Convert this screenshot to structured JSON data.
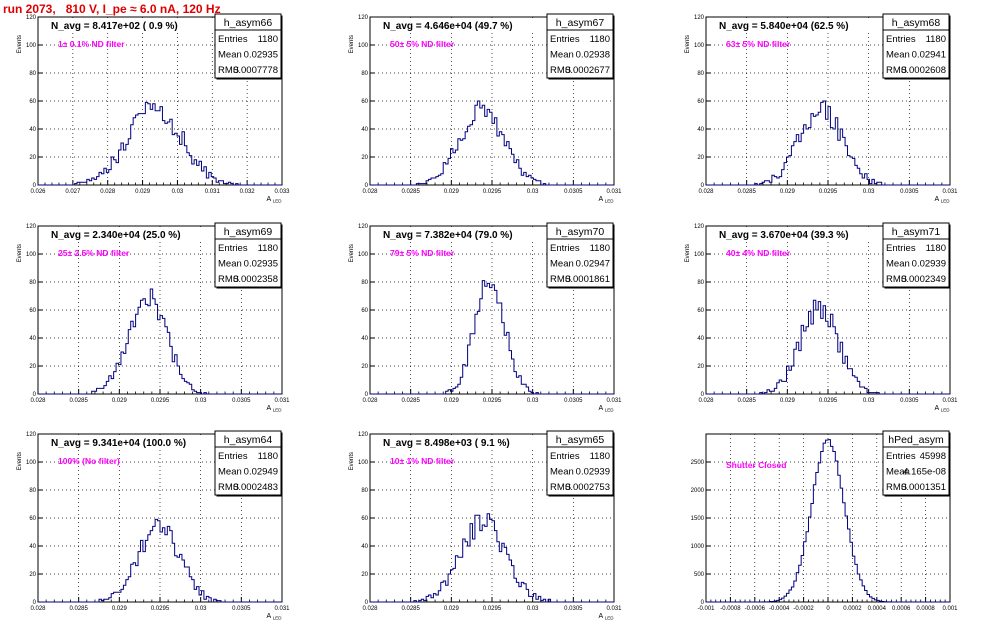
{
  "page": {
    "run_title": "run 2073,   810 V, I_pe ≈ 6.0 nA, 120 Hz",
    "colors": {
      "title": "#e00000",
      "annotation": "#ff00ff",
      "histogram_line": "#000080",
      "frame": "#000000",
      "grid": "#000000"
    }
  },
  "chart_data": [
    {
      "type": "histogram",
      "title": "h_asym66",
      "header": "N_avg = 8.417e+02 ( 0.9 %)",
      "annotation": "1± 0.1% ND filter",
      "ylabel": "Events",
      "xlabel": "A_LED",
      "stats": {
        "Entries": "1180",
        "Mean": "0.02935",
        "RMS": "0.0007778"
      },
      "xlim": [
        0.026,
        0.033
      ],
      "ylim": [
        0,
        120
      ],
      "x_ticks": [
        "0.026",
        "0.027",
        "0.028",
        "0.029",
        "0.03",
        "0.031",
        "0.032",
        "0.033"
      ],
      "y_ticks": [
        "0",
        "20",
        "40",
        "60",
        "80",
        "100",
        "120"
      ],
      "grid": true,
      "bin_count": 100,
      "mean": 0.02935,
      "rms": 0.0007778,
      "peak": 55
    },
    {
      "type": "histogram",
      "title": "h_asym67",
      "header": "N_avg = 4.646e+04 (49.7 %)",
      "annotation": "50± 5% ND filter",
      "ylabel": "Events",
      "xlabel": "A_LED",
      "stats": {
        "Entries": "1180",
        "Mean": "0.02938",
        "RMS": "0.0002677"
      },
      "xlim": [
        0.028,
        0.031
      ],
      "ylim": [
        0,
        120
      ],
      "x_ticks": [
        "0.028",
        "0.0285",
        "0.029",
        "0.0295",
        "0.03",
        "0.0305",
        "0.031"
      ],
      "y_ticks": [
        "0",
        "20",
        "40",
        "60",
        "80",
        "100",
        "120"
      ],
      "grid": true,
      "bin_count": 100,
      "mean": 0.02938,
      "rms": 0.0002677,
      "peak": 55
    },
    {
      "type": "histogram",
      "title": "h_asym68",
      "header": "N_avg = 5.840e+04 (62.5 %)",
      "annotation": "63± 5% ND filter",
      "ylabel": "Events",
      "xlabel": "A_LED",
      "stats": {
        "Entries": "1180",
        "Mean": "0.02941",
        "RMS": "0.0002608"
      },
      "xlim": [
        0.028,
        0.031
      ],
      "ylim": [
        0,
        120
      ],
      "x_ticks": [
        "0.028",
        "0.0285",
        "0.029",
        "0.0295",
        "0.03",
        "0.0305",
        "0.031"
      ],
      "y_ticks": [
        "0",
        "20",
        "40",
        "60",
        "80",
        "100",
        "120"
      ],
      "grid": true,
      "bin_count": 100,
      "mean": 0.02941,
      "rms": 0.0002608,
      "peak": 55
    },
    {
      "type": "histogram",
      "title": "h_asym69",
      "header": "N_avg = 2.340e+04 (25.0 %)",
      "annotation": "25± 2.5% ND filter",
      "ylabel": "Events",
      "xlabel": "A_LED",
      "stats": {
        "Entries": "1180",
        "Mean": "0.02935",
        "RMS": "0.0002358"
      },
      "xlim": [
        0.028,
        0.031
      ],
      "ylim": [
        0,
        120
      ],
      "x_ticks": [
        "0.028",
        "0.0285",
        "0.029",
        "0.0295",
        "0.03",
        "0.0305",
        "0.031"
      ],
      "y_ticks": [
        "0",
        "20",
        "40",
        "60",
        "80",
        "100",
        "120"
      ],
      "grid": true,
      "bin_count": 100,
      "mean": 0.02935,
      "rms": 0.0002358,
      "peak": 68
    },
    {
      "type": "histogram",
      "title": "h_asym70",
      "header": "N_avg = 7.382e+04 (79.0 %)",
      "annotation": "79± 5% ND filter",
      "ylabel": "Events",
      "xlabel": "A_LED",
      "stats": {
        "Entries": "1180",
        "Mean": "0.02947",
        "RMS": "0.0001861"
      },
      "xlim": [
        0.028,
        0.031
      ],
      "ylim": [
        0,
        120
      ],
      "x_ticks": [
        "0.028",
        "0.0285",
        "0.029",
        "0.0295",
        "0.03",
        "0.0305",
        "0.031"
      ],
      "y_ticks": [
        "0",
        "20",
        "40",
        "60",
        "80",
        "100",
        "120"
      ],
      "grid": true,
      "bin_count": 100,
      "mean": 0.02947,
      "rms": 0.0001861,
      "peak": 82
    },
    {
      "type": "histogram",
      "title": "h_asym71",
      "header": "N_avg = 3.670e+04 (39.3 %)",
      "annotation": "40± 4% ND filter",
      "ylabel": "Events",
      "xlabel": "A_LED",
      "stats": {
        "Entries": "1180",
        "Mean": "0.02939",
        "RMS": "0.0002349"
      },
      "xlim": [
        0.028,
        0.031
      ],
      "ylim": [
        0,
        120
      ],
      "x_ticks": [
        "0.028",
        "0.0285",
        "0.029",
        "0.0295",
        "0.03",
        "0.0305",
        "0.031"
      ],
      "y_ticks": [
        "0",
        "20",
        "40",
        "60",
        "80",
        "100",
        "120"
      ],
      "grid": true,
      "bin_count": 100,
      "mean": 0.02939,
      "rms": 0.0002349,
      "peak": 62
    },
    {
      "type": "histogram",
      "title": "h_asym64",
      "header": "N_avg = 9.341e+04 (100.0 %)",
      "annotation": "100% (No filter)",
      "ylabel": "Events",
      "xlabel": "A_LED",
      "stats": {
        "Entries": "1180",
        "Mean": "0.02949",
        "RMS": "0.0002483"
      },
      "xlim": [
        0.028,
        0.031
      ],
      "ylim": [
        0,
        120
      ],
      "x_ticks": [
        "0.028",
        "0.0285",
        "0.029",
        "0.0295",
        "0.03",
        "0.0305",
        "0.031"
      ],
      "y_ticks": [
        "0",
        "20",
        "40",
        "60",
        "80",
        "100",
        "120"
      ],
      "grid": true,
      "bin_count": 100,
      "mean": 0.02949,
      "rms": 0.0002483,
      "peak": 56
    },
    {
      "type": "histogram",
      "title": "h_asym65",
      "header": "N_avg = 8.498e+03 ( 9.1 %)",
      "annotation": "10± 1% ND filter",
      "ylabel": "Events",
      "xlabel": "A_LED",
      "stats": {
        "Entries": "1180",
        "Mean": "0.02939",
        "RMS": "0.0002753"
      },
      "xlim": [
        0.028,
        0.031
      ],
      "ylim": [
        0,
        120
      ],
      "x_ticks": [
        "0.028",
        "0.0285",
        "0.029",
        "0.0295",
        "0.03",
        "0.0305",
        "0.031"
      ],
      "y_ticks": [
        "0",
        "20",
        "40",
        "60",
        "80",
        "100",
        "120"
      ],
      "grid": true,
      "bin_count": 100,
      "mean": 0.02939,
      "rms": 0.0002753,
      "peak": 58
    },
    {
      "type": "histogram",
      "title": "hPed_asym",
      "header": "",
      "annotation": "Shutter Closed",
      "ylabel": "",
      "xlabel": "",
      "stats": {
        "Entries": "45998",
        "Mean": "4.165e-08",
        "RMS": "0.0001351"
      },
      "xlim": [
        -0.001,
        0.001
      ],
      "ylim": [
        0,
        3000
      ],
      "x_ticks": [
        "-0.001",
        "-0.0008",
        "-0.0006",
        "-0.0004",
        "-0.0002",
        "0",
        "0.0002",
        "0.0004",
        "0.0006",
        "0.0008",
        "0.001"
      ],
      "y_ticks": [
        "0",
        "500",
        "1000",
        "1500",
        "2000",
        "2500"
      ],
      "grid": true,
      "bin_count": 100,
      "mean": 0.0,
      "rms": 0.0001351,
      "peak": 2850
    }
  ]
}
